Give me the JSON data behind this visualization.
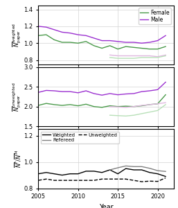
{
  "years": [
    2005,
    2006,
    2007,
    2008,
    2009,
    2010,
    2011,
    2012,
    2013,
    2014,
    2015,
    2016,
    2017,
    2018,
    2019,
    2020,
    2021
  ],
  "weighted_female": [
    1.09,
    1.1,
    1.04,
    1.01,
    1.01,
    1.0,
    1.02,
    0.97,
    0.94,
    0.97,
    0.93,
    0.96,
    0.95,
    0.94,
    0.93,
    0.93,
    0.96
  ],
  "weighted_male": [
    1.2,
    1.19,
    1.16,
    1.13,
    1.12,
    1.1,
    1.09,
    1.06,
    1.03,
    1.03,
    1.02,
    1.01,
    1.01,
    1.0,
    1.01,
    1.03,
    1.09
  ],
  "weighted_female_ref": [
    null,
    null,
    null,
    null,
    null,
    null,
    null,
    null,
    null,
    0.83,
    0.82,
    0.82,
    0.82,
    0.83,
    0.83,
    0.83,
    0.85
  ],
  "weighted_male_ref": [
    null,
    null,
    null,
    null,
    null,
    null,
    null,
    null,
    null,
    0.86,
    0.85,
    0.85,
    0.85,
    0.85,
    0.85,
    0.84,
    0.86
  ],
  "unweighted_female": [
    2.03,
    2.08,
    2.05,
    2.03,
    2.05,
    2.02,
    2.06,
    2.0,
    1.98,
    2.02,
    2.0,
    2.01,
    2.0,
    2.02,
    2.05,
    2.07,
    2.3
  ],
  "unweighted_male": [
    2.36,
    2.41,
    2.4,
    2.38,
    2.38,
    2.35,
    2.4,
    2.33,
    2.29,
    2.33,
    2.3,
    2.32,
    2.33,
    2.38,
    2.4,
    2.43,
    2.62
  ],
  "unweighted_female_ref": [
    null,
    null,
    null,
    null,
    null,
    null,
    null,
    null,
    null,
    1.78,
    1.77,
    1.76,
    1.78,
    1.82,
    1.86,
    1.9,
    2.05
  ],
  "unweighted_male_ref": [
    null,
    null,
    null,
    null,
    null,
    null,
    null,
    null,
    null,
    2.0,
    1.99,
    1.98,
    2.0,
    2.03,
    2.05,
    2.07,
    2.1
  ],
  "ratio_weighted": [
    0.91,
    0.92,
    0.91,
    0.9,
    0.91,
    0.91,
    0.93,
    0.93,
    0.92,
    0.94,
    0.91,
    0.95,
    0.94,
    0.94,
    0.92,
    0.91,
    0.89
  ],
  "ratio_unweighted": [
    0.86,
    0.87,
    0.86,
    0.86,
    0.86,
    0.86,
    0.86,
    0.86,
    0.87,
    0.87,
    0.87,
    0.87,
    0.86,
    0.85,
    0.854,
    0.852,
    0.879
  ],
  "ratio_refereed": [
    null,
    null,
    null,
    null,
    null,
    null,
    null,
    null,
    null,
    0.94,
    0.956,
    0.97,
    0.965,
    0.965,
    0.952,
    0.934,
    0.928
  ],
  "female_color": "#4a9a4a",
  "male_color": "#9b30d0",
  "ref_female_color": "#b8e0b8",
  "ref_male_color": "#e0b8e0",
  "panel1_ylabel": "$\\overline{N}^{\\mathrm{weighted}}_{\\mathrm{paper}}$",
  "panel2_ylabel": "$\\overline{N}^{\\mathrm{unweighted}}_{\\mathrm{paper}}$",
  "panel3_ylabel": "$\\overline{N}^{\\mathrm{F}} / \\overline{N}^{\\mathrm{M}}$",
  "xlabel": "Year",
  "panel1_ylim": [
    0.75,
    1.45
  ],
  "panel2_ylim": [
    1.5,
    3.0
  ],
  "panel3_ylim": [
    0.8,
    1.25
  ],
  "panel1_yticks": [
    0.8,
    1.0,
    1.2,
    1.4
  ],
  "panel2_yticks": [
    1.5,
    2.0,
    2.5,
    3.0
  ],
  "panel3_yticks": [
    0.8,
    1.0,
    1.2
  ]
}
